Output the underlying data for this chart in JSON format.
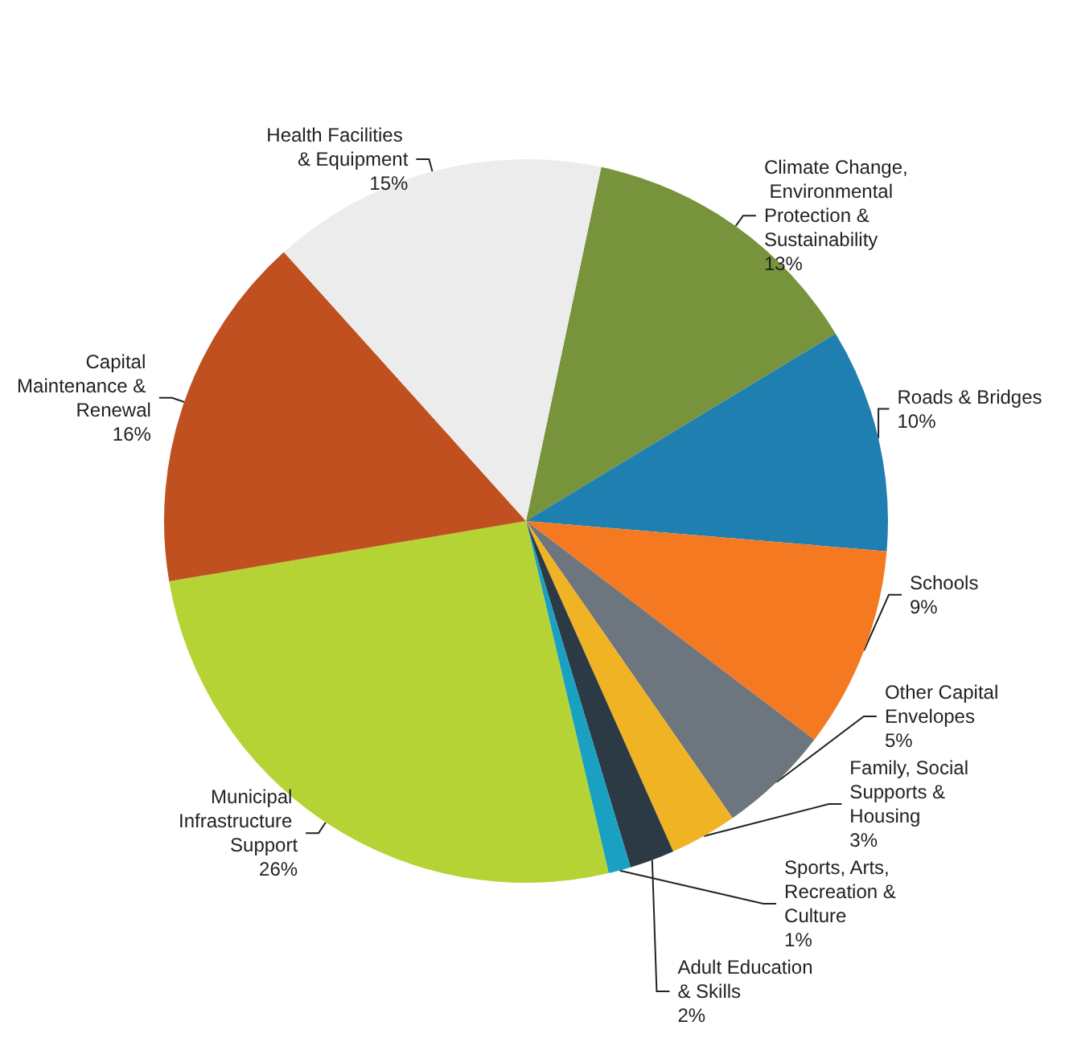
{
  "chart_data": {
    "type": "pie",
    "categories": [
      "Climate Change, Environmental Protection & Sustainability",
      "Roads & Bridges",
      "Schools",
      "Other Capital Envelopes",
      "Family, Social Supports & Housing",
      "Adult Education & Skills",
      "Sports, Arts, Recreation & Culture",
      "Municipal Infrastructure Support",
      "Capital Maintenance & Renewal",
      "Health Facilities & Equipment"
    ],
    "values": [
      13,
      10,
      9,
      5,
      3,
      2,
      1,
      26,
      16,
      15
    ],
    "colors": [
      "#77933c",
      "#1f7fb0",
      "#f47920",
      "#6d767e",
      "#f0b323",
      "#2b3a44",
      "#1aa0c0",
      "#b5d334",
      "#c0501f",
      "#ececec"
    ],
    "value_labels": [
      "13%",
      "10%",
      "9%",
      "5%",
      "3%",
      "2%",
      "1%",
      "26%",
      "16%",
      "15%"
    ]
  }
}
